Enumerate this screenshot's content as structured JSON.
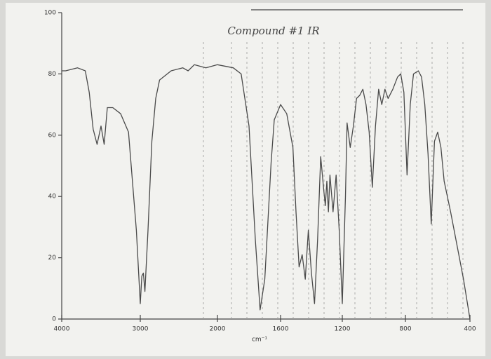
{
  "chart_data": {
    "type": "line",
    "title": "Compound #1 IR",
    "x_label": "cm⁻¹",
    "x": [
      4000,
      3950,
      3800,
      3700,
      3650,
      3600,
      3550,
      3500,
      3460,
      3420,
      3350,
      3250,
      3150,
      3050,
      3000,
      2980,
      2960,
      2940,
      2900,
      2850,
      2800,
      2750,
      2600,
      2450,
      2380,
      2300,
      2150,
      2000,
      1900,
      1850,
      1800,
      1760,
      1730,
      1700,
      1660,
      1640,
      1600,
      1560,
      1520,
      1500,
      1480,
      1460,
      1440,
      1420,
      1400,
      1380,
      1360,
      1340,
      1320,
      1310,
      1300,
      1290,
      1280,
      1260,
      1240,
      1220,
      1200,
      1180,
      1170,
      1150,
      1130,
      1110,
      1090,
      1070,
      1050,
      1030,
      1010,
      990,
      970,
      950,
      930,
      910,
      880,
      850,
      830,
      810,
      790,
      770,
      750,
      720,
      700,
      680,
      660,
      640,
      620,
      600,
      580,
      560,
      540,
      520,
      480,
      440,
      400
    ],
    "values": [
      81,
      81,
      82,
      81,
      74,
      62,
      57,
      63,
      57,
      69,
      69,
      67,
      61,
      29,
      5,
      14,
      15,
      9,
      29,
      58,
      72,
      78,
      81,
      82,
      81,
      83,
      82,
      83,
      82,
      80,
      63,
      26,
      3,
      13,
      51,
      65,
      70,
      67,
      56,
      35,
      17,
      21,
      13,
      29,
      15,
      5,
      26,
      53,
      42,
      37,
      45,
      35,
      47,
      35,
      47,
      29,
      5,
      40,
      64,
      56,
      63,
      72,
      73,
      75,
      70,
      61,
      43,
      63,
      75,
      70,
      75,
      72,
      75,
      79,
      80,
      74,
      47,
      70,
      80,
      81,
      79,
      70,
      54,
      31,
      58,
      61,
      56,
      45,
      40,
      35,
      24,
      13,
      0
    ],
    "color": "#4a4a4a",
    "xlim": [
      4000,
      400
    ],
    "xticks": [
      4000,
      3000,
      2000,
      1600,
      1200,
      800,
      400
    ],
    "ylim": [
      0,
      100
    ],
    "yticks": [
      0,
      20,
      40,
      60,
      80,
      100
    ]
  }
}
